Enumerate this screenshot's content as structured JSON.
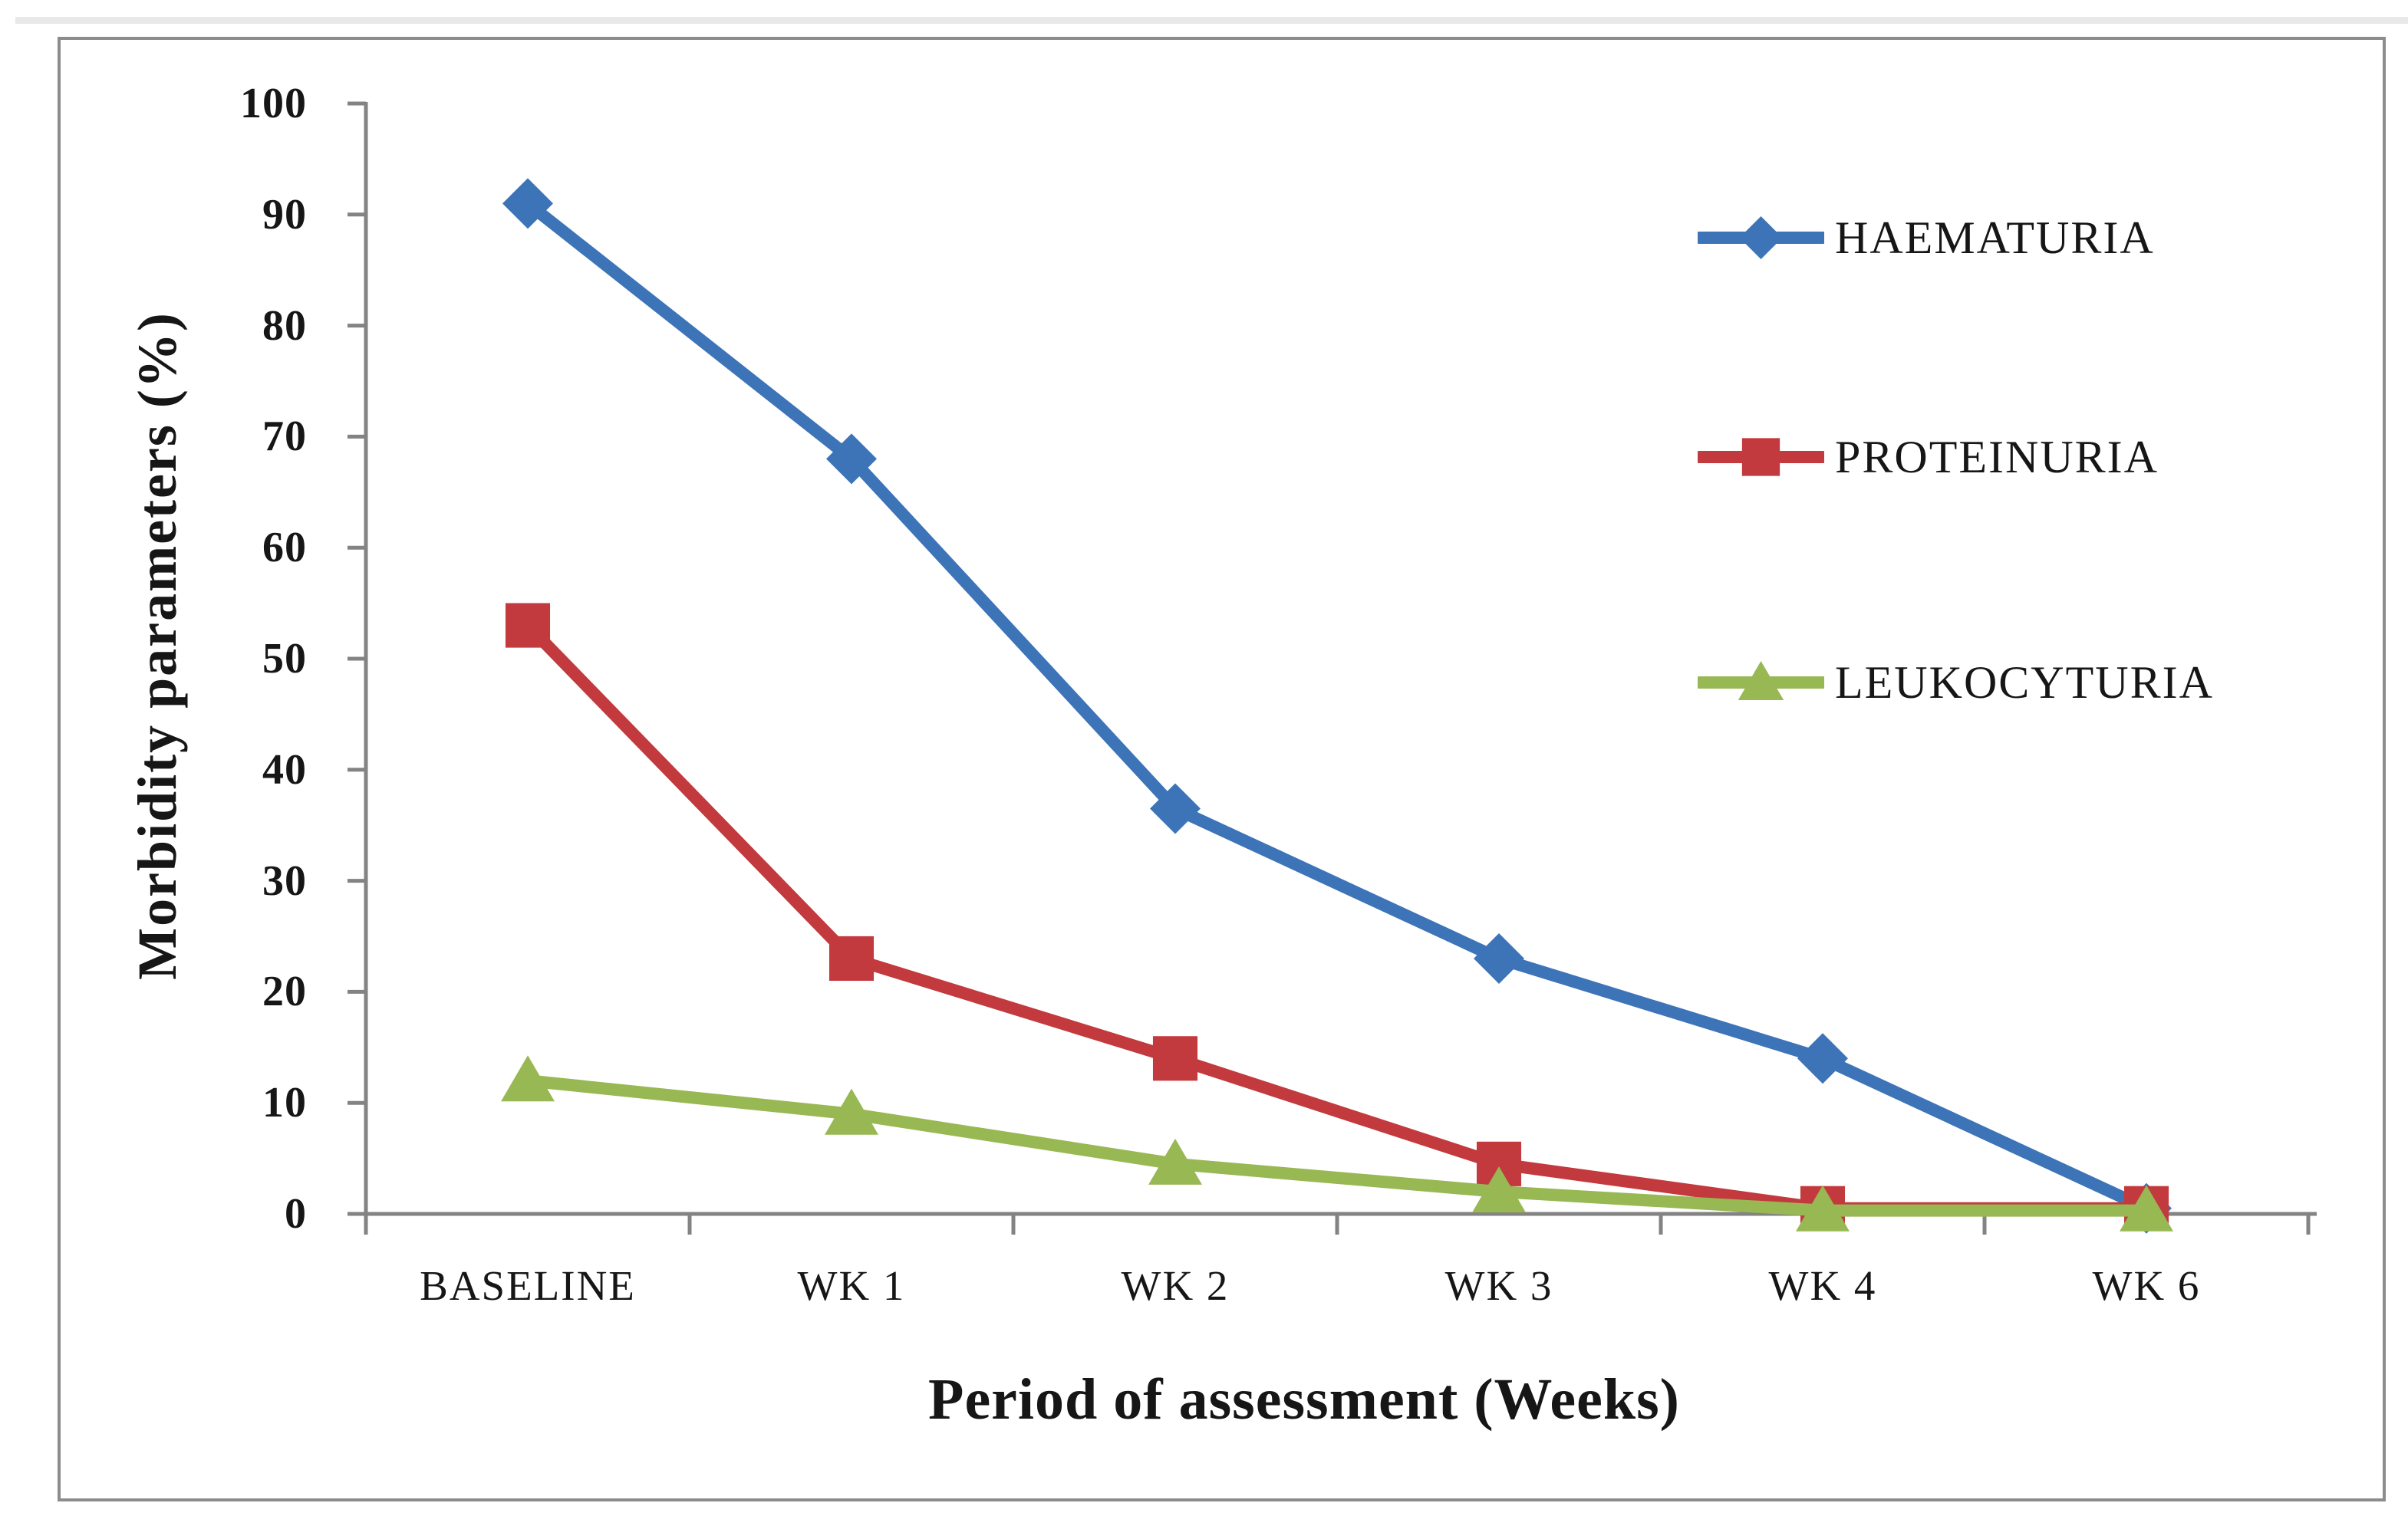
{
  "page": {
    "top_strip_color": "#e8e8e8",
    "background": "#ffffff"
  },
  "figure": {
    "border_color": "#8c8c8c",
    "background": "#ffffff"
  },
  "chart_data": {
    "type": "line",
    "title": "",
    "categories": [
      "BASELINE",
      "WK 1",
      "WK 2",
      "WK 3",
      "WK 4",
      "WK 6"
    ],
    "series": [
      {
        "name": "HAEMATURIA",
        "marker": "diamond",
        "color": "#3d74b8",
        "values": [
          91,
          68,
          36.5,
          23,
          14,
          0.5
        ]
      },
      {
        "name": "PROTEINURIA",
        "marker": "square",
        "color": "#c23a3d",
        "values": [
          53,
          23,
          14,
          4.5,
          0.5,
          0.5
        ]
      },
      {
        "name": "LEUKOCYTURIA",
        "marker": "triangle",
        "color": "#98b854",
        "values": [
          12,
          9,
          4.5,
          2,
          0.3,
          0.3
        ]
      }
    ],
    "xlabel": "Period of assessment (Weeks)",
    "ylabel": "Morbidity parameters (%)",
    "ylim": [
      0,
      100
    ],
    "ytick_step": 10,
    "grid": false,
    "legend_position": "upper-right",
    "axis_color": "#838383",
    "text_color": "#161616"
  }
}
